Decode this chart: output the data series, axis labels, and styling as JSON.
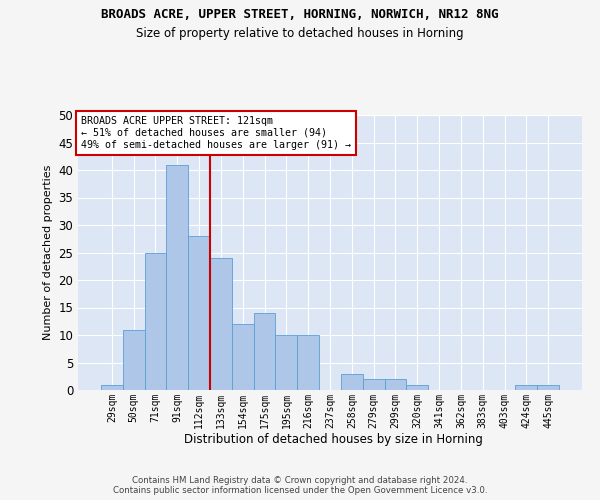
{
  "title": "BROADS ACRE, UPPER STREET, HORNING, NORWICH, NR12 8NG",
  "subtitle": "Size of property relative to detached houses in Horning",
  "xlabel": "Distribution of detached houses by size in Horning",
  "ylabel": "Number of detached properties",
  "categories": [
    "29sqm",
    "50sqm",
    "71sqm",
    "91sqm",
    "112sqm",
    "133sqm",
    "154sqm",
    "175sqm",
    "195sqm",
    "216sqm",
    "237sqm",
    "258sqm",
    "279sqm",
    "299sqm",
    "320sqm",
    "341sqm",
    "362sqm",
    "383sqm",
    "403sqm",
    "424sqm",
    "445sqm"
  ],
  "values": [
    1,
    11,
    25,
    41,
    28,
    24,
    12,
    14,
    10,
    10,
    0,
    3,
    2,
    2,
    1,
    0,
    0,
    0,
    0,
    1,
    1
  ],
  "bar_color": "#aec6e8",
  "bar_edge_color": "#5a9fd4",
  "ylim": [
    0,
    50
  ],
  "yticks": [
    0,
    5,
    10,
    15,
    20,
    25,
    30,
    35,
    40,
    45,
    50
  ],
  "property_size_label": "BROADS ACRE UPPER STREET: 121sqm",
  "annotation_line1": "← 51% of detached houses are smaller (94)",
  "annotation_line2": "49% of semi-detached houses are larger (91) →",
  "vline_color": "#cc0000",
  "annotation_box_color": "#ffffff",
  "annotation_box_edge": "#cc0000",
  "background_color": "#dce6f5",
  "grid_color": "#ffffff",
  "footer_line1": "Contains HM Land Registry data © Crown copyright and database right 2024.",
  "footer_line2": "Contains public sector information licensed under the Open Government Licence v3.0.",
  "fig_bg": "#f5f5f5"
}
